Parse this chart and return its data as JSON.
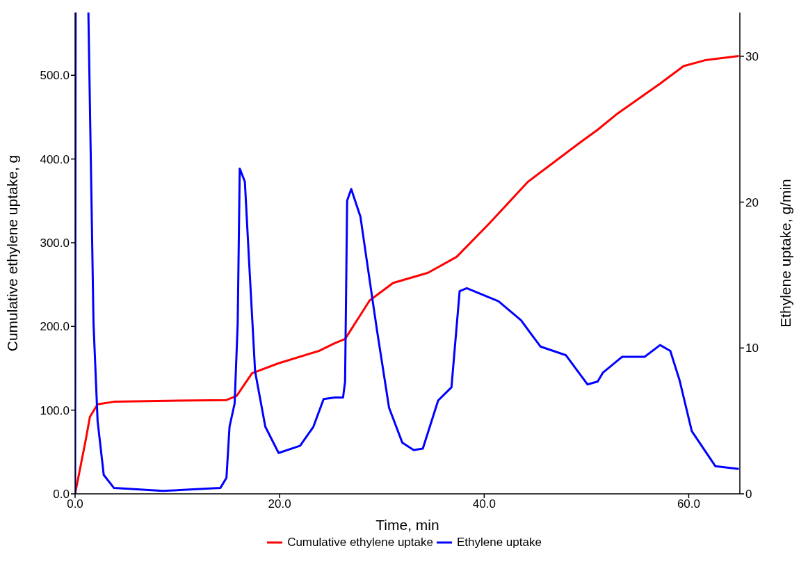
{
  "chart_data": {
    "type": "line",
    "xlabel": "Time, min",
    "ylabel": "Cumulative ethylene uptake, g",
    "y2label": "Ethylene uptake, g/min",
    "xlim": [
      0,
      65
    ],
    "xticks": [
      {
        "value": 0,
        "label": "0.0"
      },
      {
        "value": 20,
        "label": "20.0"
      },
      {
        "value": 40,
        "label": "40.0"
      },
      {
        "value": 60,
        "label": "60.0"
      }
    ],
    "ylim": [
      0,
      575
    ],
    "yticks": [
      {
        "value": 0,
        "label": "0.0"
      },
      {
        "value": 100,
        "label": "100.0"
      },
      {
        "value": 200,
        "label": "200.0"
      },
      {
        "value": 300,
        "label": "300.0"
      },
      {
        "value": 400,
        "label": "400.0"
      },
      {
        "value": 500,
        "label": "500.0"
      }
    ],
    "y2lim": [
      0,
      33
    ],
    "y2ticks": [
      0,
      10,
      20,
      30
    ],
    "grid": false,
    "legend": "bottom",
    "marker": "none",
    "line_style": "solid",
    "series": [
      {
        "name": "Cumulative ethylene uptake",
        "color": "#ff0000",
        "x": [
          0,
          1.05,
          1.45,
          2.2,
          3.8,
          8,
          14.8,
          15.8,
          17.3,
          19.9,
          23.9,
          25.4,
          26.4,
          28.8,
          31.1,
          34.5,
          37.3,
          40.5,
          44.3,
          49.3,
          51.1,
          52.9,
          57.2,
          59.5,
          61.6,
          64.9
        ],
        "values": [
          0,
          65,
          92,
          107,
          110,
          111,
          112,
          117,
          144,
          156,
          171,
          180,
          185,
          231,
          252,
          264,
          283,
          323,
          373,
          419,
          435,
          453,
          490,
          511,
          518,
          523
        ]
      },
      {
        "name": "Ethylene uptake",
        "color": "#0000ff",
        "axis": "y2",
        "x": [
          0,
          0.05,
          0.06,
          1.3,
          1.8,
          2.2,
          2.8,
          3.8,
          8.6,
          14.2,
          14.8,
          15.1,
          15.6,
          15.9,
          16.1,
          16.6,
          17.0,
          17.6,
          18.6,
          19.9,
          22.0,
          23.3,
          24.3,
          25.4,
          26.2,
          26.4,
          26.6,
          27.0,
          27.9,
          28.5,
          29.5,
          30.7,
          32.0,
          33.1,
          34.0,
          35.5,
          36.8,
          37.6,
          38.3,
          41.4,
          43.6,
          45.5,
          48.0,
          50.1,
          51.1,
          51.6,
          53.5,
          55.7,
          57.2,
          58.2,
          59.1,
          60.3,
          62.6,
          64.9
        ],
        "values": [
          0,
          33,
          null,
          33,
          11.7,
          5.0,
          1.3,
          0.4,
          0.2,
          0.4,
          1.1,
          4.6,
          6.2,
          11.7,
          22.3,
          21.4,
          16.1,
          8.4,
          4.6,
          2.8,
          3.3,
          4.6,
          6.5,
          6.6,
          6.6,
          7.7,
          20.1,
          20.9,
          19.0,
          16.1,
          11.3,
          5.9,
          3.5,
          3.0,
          3.1,
          6.4,
          7.3,
          13.9,
          14.1,
          13.2,
          11.9,
          10.1,
          9.5,
          7.5,
          7.7,
          8.3,
          9.4,
          9.4,
          10.2,
          9.8,
          7.8,
          4.3,
          1.9,
          1.7
        ]
      }
    ]
  }
}
